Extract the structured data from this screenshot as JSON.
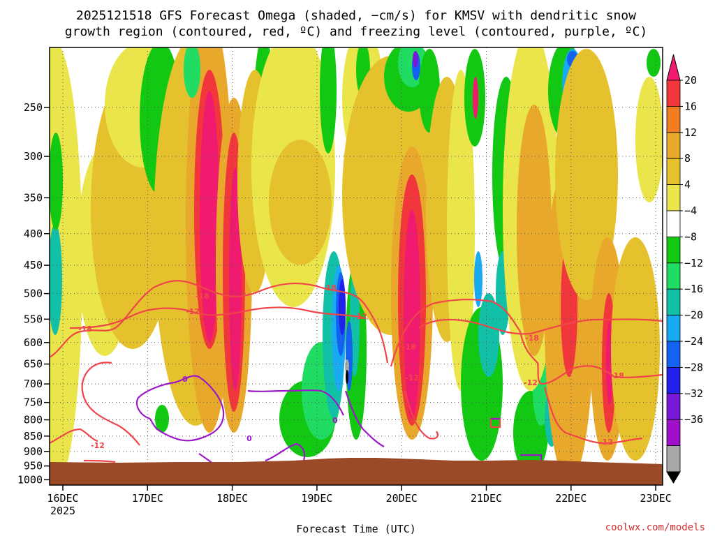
{
  "chart_data": {
    "type": "heatmap",
    "title_line1": "2025121518 GFS Forecast Omega (shaded, −cm/s) for KMSV with dendritic snow",
    "title_line2": "growth region (contoured, red, ºC) and freezing level (contoured, purple, ºC)",
    "xlabel": "Forecast Time (UTC)",
    "x_ticks": [
      "16DEC",
      "17DEC",
      "18DEC",
      "19DEC",
      "20DEC",
      "21DEC",
      "22DEC",
      "23DEC"
    ],
    "x_year": "2025",
    "y_scale": "log-pressure",
    "y_ticks": [
      250,
      300,
      350,
      400,
      450,
      500,
      550,
      600,
      650,
      700,
      750,
      800,
      850,
      900,
      950,
      1000
    ],
    "ylim": [
      200,
      1020
    ],
    "grid": true,
    "colorbar": {
      "labels": [
        20,
        16,
        12,
        8,
        4,
        -4,
        -8,
        -12,
        -16,
        -20,
        -24,
        -28,
        -32,
        -36
      ],
      "colors": [
        "#f01b6e",
        "#f2373c",
        "#f07d22",
        "#e8a82c",
        "#e6c12e",
        "#eae54a",
        "#ffffff",
        "#12c812",
        "#20dc62",
        "#12c0a8",
        "#1aaaf2",
        "#1462f0",
        "#2020e8",
        "#7a18d8",
        "#a010c8",
        "#a8a8a8",
        "#000000"
      ]
    },
    "series": [
      {
        "name": "-18",
        "color": "#f0454a"
      },
      {
        "name": "-12",
        "color": "#f0454a"
      },
      {
        "name": "0",
        "color": "#9a18c8"
      }
    ],
    "credit": "coolwx.com/models"
  }
}
